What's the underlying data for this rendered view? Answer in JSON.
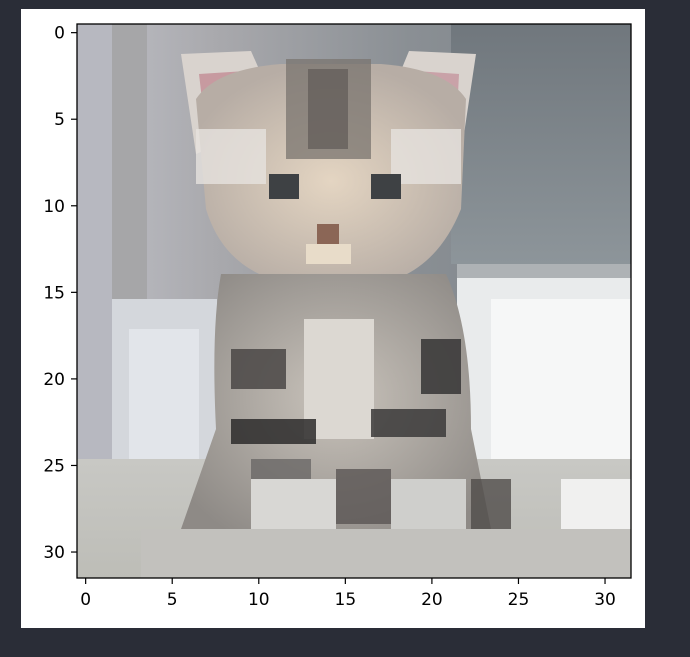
{
  "chart_data": {
    "type": "heatmap",
    "description": "Low-resolution 32x32 RGB pixel image shown with matplotlib-style imshow axes",
    "image_grid": {
      "rows": 32,
      "cols": 32
    },
    "xlim": [
      -0.5,
      31.5
    ],
    "ylim": [
      31.5,
      -0.5
    ],
    "x_ticks": [
      "0",
      "5",
      "10",
      "15",
      "20",
      "25",
      "30"
    ],
    "y_ticks": [
      "0",
      "5",
      "10",
      "15",
      "20",
      "25",
      "30"
    ],
    "grid": false
  },
  "colors": {
    "page_background": "#2a2d37",
    "figure_background": "#ffffff",
    "axis": "#000000"
  }
}
